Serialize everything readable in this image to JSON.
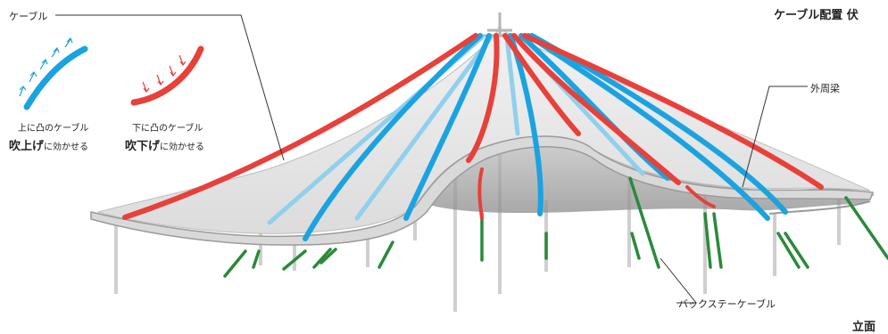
{
  "title": "ケーブル配置 伏",
  "elevation_label": "立面",
  "callouts": {
    "cable": "ケーブル",
    "outer_beam": "外周梁",
    "backstay": "バックステーケーブル"
  },
  "legend": {
    "upward": {
      "caption": "上に凸のケーブル",
      "effect_strong": "吹上げ",
      "effect_rest": "に効かせる",
      "color": "#1aa3e0",
      "arrow_direction": "up"
    },
    "downward": {
      "caption": "下に凸のケーブル",
      "effect_strong": "吹下げ",
      "effect_rest": "に効かせる",
      "color": "#e8403a",
      "arrow_direction": "down"
    }
  },
  "colors": {
    "red_cable": "#e8403a",
    "blue_cable": "#1aa3e0",
    "light_blue_cable": "#8fd0ee",
    "green_cable": "#2a8a3a",
    "membrane": "#e9e9e9",
    "structure": "#c8c8c8"
  }
}
